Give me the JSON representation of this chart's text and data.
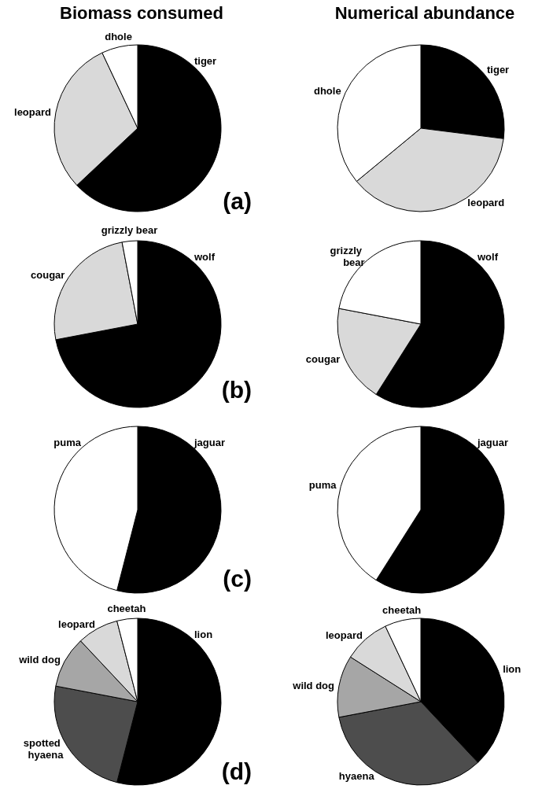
{
  "chart_data": [
    {
      "type": "pie",
      "title": "Biomass consumed",
      "categories": [
        "tiger",
        "leopard",
        "dhole"
      ],
      "values": [
        63,
        30,
        7
      ],
      "colors": [
        "#000000",
        "#d9d9d9",
        "#ffffff"
      ],
      "annotations": [
        "(a)"
      ]
    },
    {
      "type": "pie",
      "title": "Numerical abundance",
      "categories": [
        "tiger",
        "leopard",
        "dhole"
      ],
      "values": [
        27,
        37,
        36
      ],
      "colors": [
        "#000000",
        "#d9d9d9",
        "#ffffff"
      ]
    },
    {
      "type": "pie",
      "categories": [
        "wolf",
        "cougar",
        "grizzly bear"
      ],
      "values": [
        72,
        25,
        3
      ],
      "colors": [
        "#000000",
        "#d9d9d9",
        "#ffffff"
      ],
      "annotations": [
        "(b)"
      ]
    },
    {
      "type": "pie",
      "categories": [
        "wolf",
        "cougar",
        "grizzly bear"
      ],
      "values": [
        59,
        19,
        22
      ],
      "colors": [
        "#000000",
        "#d9d9d9",
        "#ffffff"
      ]
    },
    {
      "type": "pie",
      "categories": [
        "jaguar",
        "puma"
      ],
      "values": [
        54,
        46
      ],
      "colors": [
        "#000000",
        "#ffffff"
      ],
      "annotations": [
        "(c)"
      ]
    },
    {
      "type": "pie",
      "categories": [
        "jaguar",
        "puma"
      ],
      "values": [
        59,
        41
      ],
      "colors": [
        "#000000",
        "#ffffff"
      ]
    },
    {
      "type": "pie",
      "categories": [
        "lion",
        "spotted hyaena",
        "wild dog",
        "leopard",
        "cheetah"
      ],
      "values": [
        54,
        24,
        10,
        8,
        4
      ],
      "colors": [
        "#000000",
        "#4d4d4d",
        "#a6a6a6",
        "#d9d9d9",
        "#ffffff"
      ],
      "annotations": [
        "(d)"
      ]
    },
    {
      "type": "pie",
      "categories": [
        "lion",
        "hyaena",
        "wild dog",
        "leopard",
        "cheetah"
      ],
      "values": [
        38,
        34,
        12,
        9,
        7
      ],
      "colors": [
        "#000000",
        "#4d4d4d",
        "#a6a6a6",
        "#d9d9d9",
        "#ffffff"
      ]
    }
  ]
}
